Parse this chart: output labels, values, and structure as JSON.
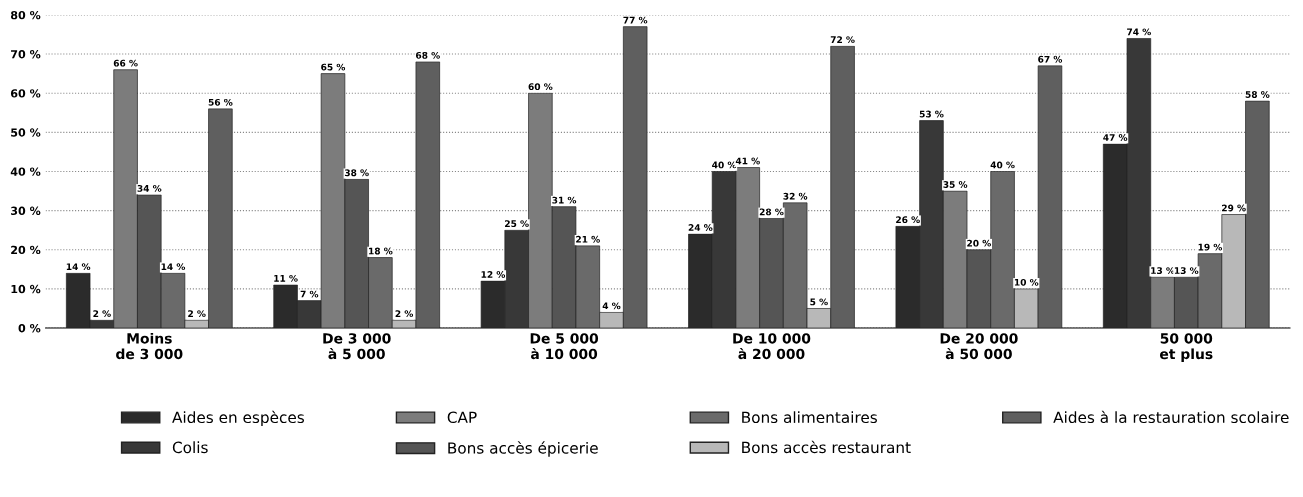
{
  "chart_data": {
    "type": "bar",
    "categories": [
      "Moins\nde 3 000",
      "De 3 000\nà 5 000",
      "De 5 000\nà 10 000",
      "De 10 000\nà 20 000",
      "De 20 000\nà 50 000",
      "50 000\net plus"
    ],
    "series": [
      {
        "name": "Aides en espèces",
        "color": "#2b2b2b",
        "values": [
          14,
          11,
          12,
          24,
          26,
          47
        ],
        "value_labels": [
          "14 %",
          "11 %",
          "12 %",
          "24 %",
          "26 %",
          "47 %"
        ]
      },
      {
        "name": "Colis",
        "color": "#383838",
        "values": [
          2,
          7,
          25,
          40,
          53,
          74
        ],
        "value_labels": [
          "2 %",
          "7 %",
          "25 %",
          "40 %",
          "53 %",
          "74 %"
        ]
      },
      {
        "name": "CAP",
        "color": "#7c7c7c",
        "values": [
          66,
          65,
          60,
          41,
          35,
          13
        ],
        "value_labels": [
          "66 %",
          "65 %",
          "60 %",
          "41 %",
          "35 %",
          "13 %"
        ]
      },
      {
        "name": "Bons accès épicerie",
        "color": "#555555",
        "values": [
          34,
          38,
          31,
          28,
          20,
          13
        ],
        "value_labels": [
          "34 %",
          "38 %",
          "31 %",
          "28 %",
          "20 %",
          "13 %"
        ]
      },
      {
        "name": "Bons alimentaires",
        "color": "#6a6a6a",
        "values": [
          14,
          18,
          21,
          32,
          40,
          19
        ],
        "value_labels": [
          "14 %",
          "18 %",
          "21 %",
          "32 %",
          "40 %",
          "19 %"
        ]
      },
      {
        "name": "Bons accès restaurant",
        "color": "#b8b8b8",
        "values": [
          2,
          2,
          4,
          5,
          10,
          29
        ],
        "value_labels": [
          "2 %",
          "2 %",
          "4 %",
          "5 %",
          "10 %",
          "29 %"
        ]
      },
      {
        "name": "Aides à la restauration scolaire",
        "color": "#5f5f5f",
        "values": [
          56,
          68,
          77,
          72,
          67,
          58
        ],
        "value_labels": [
          "56 %",
          "68 %",
          "77 %",
          "72 %",
          "67 %",
          "58 %"
        ]
      }
    ],
    "ylim": [
      0,
      80
    ],
    "yticks": [
      {
        "value": 0,
        "label": "0 %"
      },
      {
        "value": 10,
        "label": "10 %"
      },
      {
        "value": 20,
        "label": "20 %"
      },
      {
        "value": 30,
        "label": "30 %"
      },
      {
        "value": 40,
        "label": "40 %"
      },
      {
        "value": 50,
        "label": "50 %"
      },
      {
        "value": 60,
        "label": "60 %"
      },
      {
        "value": 70,
        "label": "70 %"
      },
      {
        "value": 80,
        "label": "80 %"
      }
    ],
    "grid": "y",
    "line_style": "dotted",
    "legend": "bottom left"
  }
}
